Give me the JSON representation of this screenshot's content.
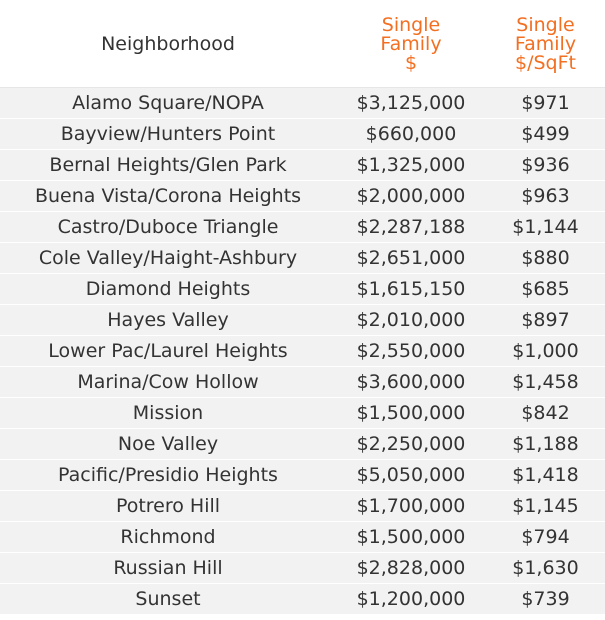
{
  "table": {
    "headers": {
      "neighborhood": "Neighborhood",
      "price": [
        "Single",
        "Family",
        "$"
      ],
      "sqft": [
        "Single",
        "Family",
        "$/SqFt"
      ]
    },
    "accent_color": "#f36f21",
    "row_bg": "#f2f2f2",
    "rows": [
      {
        "neighborhood": "Alamo Square/NOPA",
        "price": "$3,125,000",
        "sqft": "$971"
      },
      {
        "neighborhood": "Bayview/Hunters Point",
        "price": "$660,000",
        "sqft": "$499"
      },
      {
        "neighborhood": "Bernal Heights/Glen Park",
        "price": "$1,325,000",
        "sqft": "$936"
      },
      {
        "neighborhood": "Buena Vista/Corona Heights",
        "price": "$2,000,000",
        "sqft": "$963"
      },
      {
        "neighborhood": "Castro/Duboce Triangle",
        "price": "$2,287,188",
        "sqft": "$1,144"
      },
      {
        "neighborhood": "Cole Valley/Haight-Ashbury",
        "price": "$2,651,000",
        "sqft": "$880"
      },
      {
        "neighborhood": "Diamond Heights",
        "price": "$1,615,150",
        "sqft": "$685"
      },
      {
        "neighborhood": "Hayes Valley",
        "price": "$2,010,000",
        "sqft": "$897"
      },
      {
        "neighborhood": "Lower Pac/Laurel Heights",
        "price": "$2,550,000",
        "sqft": "$1,000"
      },
      {
        "neighborhood": "Marina/Cow Hollow",
        "price": "$3,600,000",
        "sqft": "$1,458"
      },
      {
        "neighborhood": "Mission",
        "price": "$1,500,000",
        "sqft": "$842"
      },
      {
        "neighborhood": "Noe Valley",
        "price": "$2,250,000",
        "sqft": "$1,188"
      },
      {
        "neighborhood": "Pacific/Presidio Heights",
        "price": "$5,050,000",
        "sqft": "$1,418"
      },
      {
        "neighborhood": "Potrero Hill",
        "price": "$1,700,000",
        "sqft": "$1,145"
      },
      {
        "neighborhood": "Richmond",
        "price": "$1,500,000",
        "sqft": "$794"
      },
      {
        "neighborhood": "Russian Hill",
        "price": "$2,828,000",
        "sqft": "$1,630"
      },
      {
        "neighborhood": "Sunset",
        "price": "$1,200,000",
        "sqft": "$739"
      }
    ]
  }
}
